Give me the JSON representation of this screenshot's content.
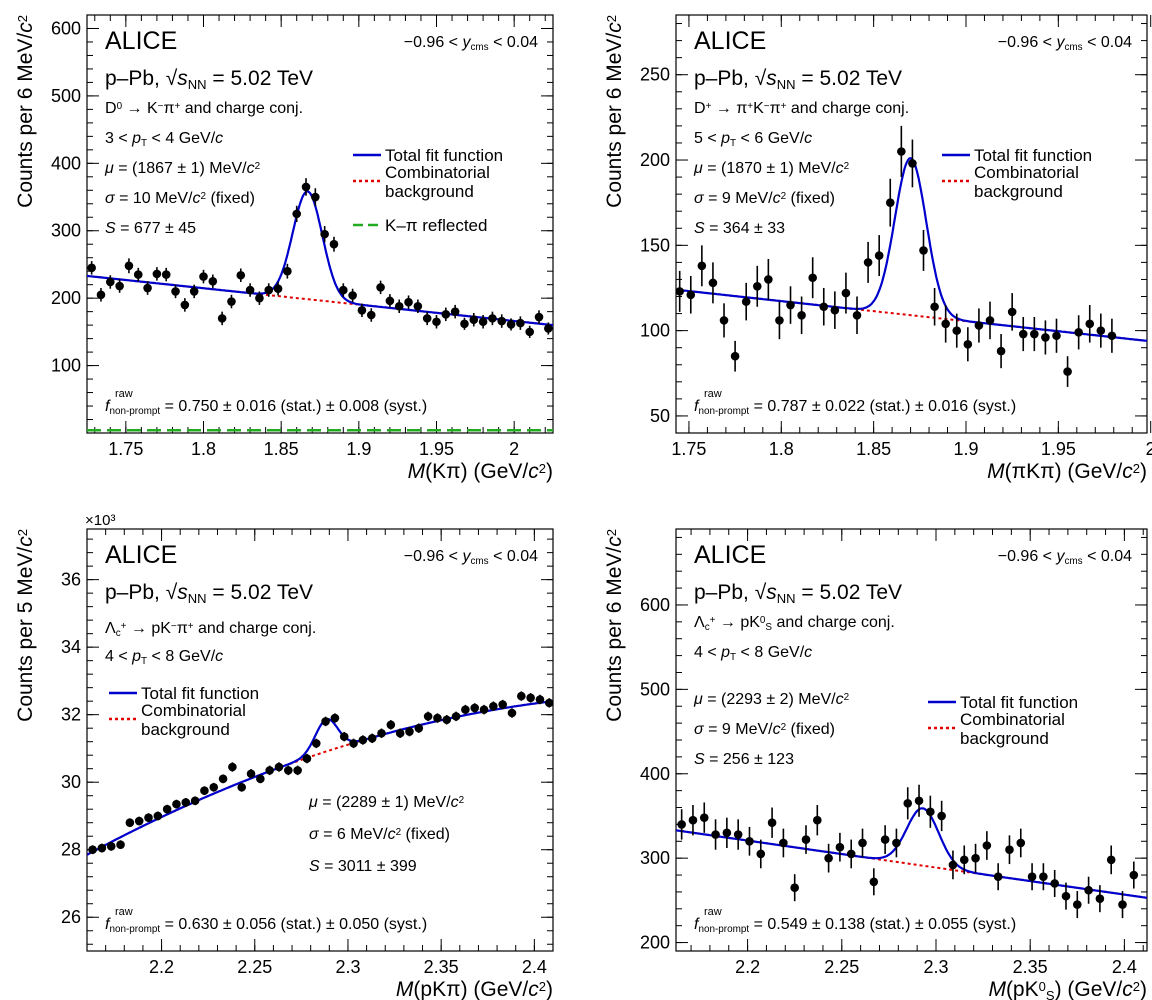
{
  "chart_data": [
    {
      "type": "scatter",
      "experiment": "ALICE",
      "rapidity": "−0.96 < y_cms < 0.04",
      "system": "p–Pb, √sNN = 5.02 TeV",
      "decay": "D⁰ → K⁻π⁺ and charge conj.",
      "pt_range": "3 < pT < 4 GeV/c",
      "fit_params": [
        "μ = (1867 ± 1) MeV/c²",
        "σ = 10 MeV/c² (fixed)",
        "S = 677 ± 45"
      ],
      "fraction": "f raw non-prompt = 0.750 ±  0.016 (stat.) ± 0.008 (syst.)",
      "xlabel": "M(Kπ) (GeV/c²)",
      "ylabel": "Counts per 6 MeV/c²",
      "y_multiplier": "",
      "xlim": [
        1.725,
        2.025
      ],
      "ylim": [
        0,
        620
      ],
      "x_ticks": [
        1.75,
        1.8,
        1.85,
        1.9,
        1.95,
        2.0
      ],
      "x_tick_labels": [
        "1.75",
        "1.8",
        "1.85",
        "1.9",
        "1.95",
        "2"
      ],
      "y_ticks": [
        100,
        200,
        300,
        400,
        500,
        600
      ],
      "y_tick_labels": [
        "100",
        "200",
        "300",
        "400",
        "500",
        "600"
      ],
      "grid": false,
      "legend_position": "right",
      "legend": [
        {
          "label": "Total fit function",
          "color": "#0000cc",
          "style": "solid"
        },
        {
          "label": "Combinatorial background",
          "color": "#e00000",
          "style": "dotted"
        },
        {
          "label": "K–π reflected",
          "color": "#22aa22",
          "style": "dashed"
        }
      ],
      "points": [
        [
          1.728,
          245,
          10
        ],
        [
          1.734,
          205,
          10
        ],
        [
          1.74,
          224,
          10
        ],
        [
          1.746,
          218,
          10
        ],
        [
          1.752,
          248,
          11
        ],
        [
          1.758,
          235,
          10
        ],
        [
          1.764,
          215,
          10
        ],
        [
          1.77,
          236,
          10
        ],
        [
          1.776,
          235,
          10
        ],
        [
          1.782,
          210,
          10
        ],
        [
          1.788,
          190,
          10
        ],
        [
          1.794,
          210,
          10
        ],
        [
          1.8,
          232,
          10
        ],
        [
          1.806,
          225,
          10
        ],
        [
          1.812,
          170,
          10
        ],
        [
          1.818,
          195,
          10
        ],
        [
          1.824,
          234,
          10
        ],
        [
          1.83,
          212,
          10
        ],
        [
          1.836,
          200,
          10
        ],
        [
          1.842,
          212,
          10
        ],
        [
          1.848,
          214,
          10
        ],
        [
          1.854,
          240,
          11
        ],
        [
          1.86,
          325,
          12
        ],
        [
          1.866,
          365,
          13
        ],
        [
          1.872,
          350,
          13
        ],
        [
          1.878,
          295,
          12
        ],
        [
          1.884,
          280,
          11
        ],
        [
          1.89,
          212,
          10
        ],
        [
          1.896,
          204,
          10
        ],
        [
          1.902,
          182,
          10
        ],
        [
          1.908,
          175,
          10
        ],
        [
          1.914,
          216,
          10
        ],
        [
          1.92,
          196,
          10
        ],
        [
          1.926,
          188,
          10
        ],
        [
          1.932,
          194,
          10
        ],
        [
          1.938,
          188,
          10
        ],
        [
          1.944,
          170,
          10
        ],
        [
          1.95,
          165,
          10
        ],
        [
          1.956,
          176,
          10
        ],
        [
          1.962,
          180,
          10
        ],
        [
          1.968,
          162,
          9
        ],
        [
          1.974,
          168,
          10
        ],
        [
          1.98,
          165,
          10
        ],
        [
          1.986,
          170,
          10
        ],
        [
          1.992,
          166,
          10
        ],
        [
          1.998,
          161,
          9
        ],
        [
          2.004,
          163,
          10
        ],
        [
          2.01,
          150,
          9
        ],
        [
          2.016,
          172,
          10
        ],
        [
          2.022,
          155,
          9
        ]
      ],
      "fit": {
        "bkg": [
          1.725,
          233,
          2.025,
          160
        ],
        "signals": [
          {
            "mean": 1.867,
            "sigma": 0.0095,
            "amp": 160
          }
        ],
        "reflection": 4
      }
    },
    {
      "type": "scatter",
      "experiment": "ALICE",
      "rapidity": "−0.96 < y_cms < 0.04",
      "system": "p–Pb, √sNN = 5.02 TeV",
      "decay": "D⁺ → π⁺K⁻π⁺ and charge conj.",
      "pt_range": "5 < pT < 6 GeV/c",
      "fit_params": [
        "μ = (1870 ± 1) MeV/c²",
        "σ = 9 MeV/c² (fixed)",
        "S = 364 ± 33"
      ],
      "fraction": "f raw non-prompt = 0.787 ±  0.022 (stat.) ± 0.016 (syst.)",
      "xlabel": "M(πKπ) (GeV/c²)",
      "ylabel": "Counts per 6 MeV/c²",
      "y_multiplier": "",
      "xlim": [
        1.743,
        1.998
      ],
      "ylim": [
        40,
        285
      ],
      "x_ticks": [
        1.75,
        1.8,
        1.85,
        1.9,
        1.95,
        2.0
      ],
      "x_tick_labels": [
        "1.75",
        "1.8",
        "1.85",
        "1.9",
        "1.95",
        "2"
      ],
      "y_ticks": [
        50,
        100,
        150,
        200,
        250
      ],
      "y_tick_labels": [
        "50",
        "100",
        "150",
        "200",
        "250"
      ],
      "grid": false,
      "legend_position": "right",
      "legend": [
        {
          "label": "Total fit function",
          "color": "#0000cc",
          "style": "solid"
        },
        {
          "label": "Combinatorial background",
          "color": "#e00000",
          "style": "dotted"
        }
      ],
      "points": [
        [
          1.745,
          123,
          12
        ],
        [
          1.751,
          121,
          11
        ],
        [
          1.757,
          138,
          12
        ],
        [
          1.763,
          128,
          12
        ],
        [
          1.769,
          106,
          10
        ],
        [
          1.775,
          85,
          9
        ],
        [
          1.781,
          117,
          11
        ],
        [
          1.787,
          126,
          12
        ],
        [
          1.793,
          130,
          12
        ],
        [
          1.799,
          106,
          11
        ],
        [
          1.805,
          115,
          11
        ],
        [
          1.811,
          109,
          11
        ],
        [
          1.817,
          131,
          12
        ],
        [
          1.823,
          114,
          11
        ],
        [
          1.829,
          112,
          11
        ],
        [
          1.835,
          122,
          12
        ],
        [
          1.841,
          109,
          11
        ],
        [
          1.847,
          140,
          12
        ],
        [
          1.853,
          144,
          12
        ],
        [
          1.859,
          175,
          14
        ],
        [
          1.865,
          205,
          15
        ],
        [
          1.871,
          198,
          14
        ],
        [
          1.877,
          147,
          12
        ],
        [
          1.883,
          114,
          11
        ],
        [
          1.889,
          104,
          11
        ],
        [
          1.895,
          100,
          10
        ],
        [
          1.901,
          92,
          10
        ],
        [
          1.907,
          103,
          10
        ],
        [
          1.913,
          106,
          11
        ],
        [
          1.919,
          88,
          10
        ],
        [
          1.925,
          111,
          11
        ],
        [
          1.931,
          98,
          10
        ],
        [
          1.937,
          98,
          10
        ],
        [
          1.943,
          96,
          10
        ],
        [
          1.949,
          97,
          10
        ],
        [
          1.955,
          76,
          9
        ],
        [
          1.961,
          99,
          10
        ],
        [
          1.967,
          104,
          11
        ],
        [
          1.973,
          100,
          10
        ],
        [
          1.979,
          97,
          10
        ]
      ],
      "fit": {
        "bkg": [
          1.743,
          124,
          1.998,
          94
        ],
        "signals": [
          {
            "mean": 1.87,
            "sigma": 0.0085,
            "amp": 92
          }
        ],
        "reflection": null
      }
    },
    {
      "type": "scatter",
      "experiment": "ALICE",
      "rapidity": "−0.96 < y_cms < 0.04",
      "system": "p–Pb, √sNN = 5.02 TeV",
      "decay": "Λc⁺ → pK⁻π⁺ and charge conj.",
      "pt_range": "4 < pT < 8 GeV/c",
      "fit_params": [
        "μ = (2289 ± 1) MeV/c²",
        "σ = 6 MeV/c² (fixed)",
        "S = 3011 ± 399"
      ],
      "fraction": "f raw non-prompt = 0.630 ± 0.056 (stat.) ± 0.050 (syst.)",
      "xlabel": "M(pKπ) (GeV/c²)",
      "ylabel": "Counts per 5 MeV/c²",
      "y_multiplier": "×10³",
      "xlim": [
        2.16,
        2.41
      ],
      "ylim": [
        25,
        37.5
      ],
      "x_ticks": [
        2.2,
        2.25,
        2.3,
        2.35,
        2.4
      ],
      "x_tick_labels": [
        "2.2",
        "2.25",
        "2.3",
        "2.35",
        "2.4"
      ],
      "y_ticks": [
        26,
        28,
        30,
        32,
        34,
        36
      ],
      "y_tick_labels": [
        "26",
        "28",
        "30",
        "32",
        "34",
        "36"
      ],
      "grid": false,
      "legend_position": "left",
      "legend": [
        {
          "label": "Total fit function",
          "color": "#0000cc",
          "style": "solid"
        },
        {
          "label": "Combinatorial background",
          "color": "#e00000",
          "style": "dotted"
        }
      ],
      "points": [
        [
          2.163,
          28.0,
          0.13
        ],
        [
          2.168,
          28.05,
          0.13
        ],
        [
          2.173,
          28.1,
          0.13
        ],
        [
          2.178,
          28.15,
          0.13
        ],
        [
          2.183,
          28.8,
          0.13
        ],
        [
          2.188,
          28.85,
          0.13
        ],
        [
          2.193,
          28.95,
          0.13
        ],
        [
          2.198,
          29.0,
          0.13
        ],
        [
          2.203,
          29.2,
          0.13
        ],
        [
          2.208,
          29.35,
          0.13
        ],
        [
          2.213,
          29.4,
          0.13
        ],
        [
          2.218,
          29.45,
          0.13
        ],
        [
          2.223,
          29.75,
          0.13
        ],
        [
          2.228,
          29.85,
          0.13
        ],
        [
          2.233,
          30.1,
          0.13
        ],
        [
          2.238,
          30.45,
          0.14
        ],
        [
          2.243,
          29.85,
          0.13
        ],
        [
          2.248,
          30.25,
          0.14
        ],
        [
          2.253,
          30.1,
          0.13
        ],
        [
          2.258,
          30.35,
          0.14
        ],
        [
          2.263,
          30.45,
          0.14
        ],
        [
          2.268,
          30.35,
          0.14
        ],
        [
          2.273,
          30.35,
          0.14
        ],
        [
          2.278,
          30.7,
          0.14
        ],
        [
          2.283,
          31.15,
          0.14
        ],
        [
          2.288,
          31.8,
          0.14
        ],
        [
          2.293,
          31.9,
          0.14
        ],
        [
          2.298,
          31.35,
          0.14
        ],
        [
          2.303,
          31.15,
          0.14
        ],
        [
          2.308,
          31.25,
          0.14
        ],
        [
          2.313,
          31.3,
          0.14
        ],
        [
          2.318,
          31.45,
          0.14
        ],
        [
          2.323,
          31.7,
          0.14
        ],
        [
          2.328,
          31.45,
          0.14
        ],
        [
          2.333,
          31.5,
          0.14
        ],
        [
          2.338,
          31.6,
          0.14
        ],
        [
          2.343,
          31.95,
          0.14
        ],
        [
          2.348,
          31.9,
          0.14
        ],
        [
          2.353,
          31.85,
          0.14
        ],
        [
          2.358,
          31.95,
          0.14
        ],
        [
          2.363,
          32.15,
          0.14
        ],
        [
          2.368,
          32.2,
          0.14
        ],
        [
          2.373,
          32.15,
          0.14
        ],
        [
          2.378,
          32.25,
          0.14
        ],
        [
          2.383,
          32.3,
          0.14
        ],
        [
          2.388,
          32.05,
          0.14
        ],
        [
          2.393,
          32.55,
          0.14
        ],
        [
          2.398,
          32.5,
          0.14
        ],
        [
          2.403,
          32.45,
          0.14
        ],
        [
          2.408,
          32.35,
          0.14
        ]
      ],
      "fit": {
        "bkg_quad": [
          2.16,
          27.85,
          2.285,
          30.85,
          2.41,
          32.4
        ],
        "signals": [
          {
            "mean": 2.2885,
            "sigma": 0.006,
            "amp": 0.95
          }
        ],
        "reflection": null
      }
    },
    {
      "type": "scatter",
      "experiment": "ALICE",
      "rapidity": "−0.96 < y_cms < 0.04",
      "system": "p–Pb, √sNN = 5.02 TeV",
      "decay": "Λc⁺ → pK⁰S and charge conj.",
      "pt_range": "4 < pT < 8 GeV/c",
      "fit_params": [
        "μ = (2293 ± 2) MeV/c²",
        "σ = 9 MeV/c² (fixed)",
        "S = 256 ± 123"
      ],
      "fraction": "f raw non-prompt = 0.549 ± 0.138 (stat.) ± 0.055 (syst.)",
      "xlabel": "M(pK⁰S) (GeV/c²)",
      "ylabel": "Counts per 6 MeV/c²",
      "y_multiplier": "",
      "xlim": [
        2.162,
        2.412
      ],
      "ylim": [
        190,
        690
      ],
      "x_ticks": [
        2.2,
        2.25,
        2.3,
        2.35,
        2.4
      ],
      "x_tick_labels": [
        "2.2",
        "2.25",
        "2.3",
        "2.35",
        "2.4"
      ],
      "y_ticks": [
        200,
        300,
        400,
        500,
        600
      ],
      "y_tick_labels": [
        "200",
        "300",
        "400",
        "500",
        "600"
      ],
      "grid": false,
      "legend_position": "right",
      "legend": [
        {
          "label": "Total fit function",
          "color": "#0000cc",
          "style": "solid"
        },
        {
          "label": "Combinatorial background",
          "color": "#e00000",
          "style": "dotted"
        }
      ],
      "points": [
        [
          2.165,
          340,
          18
        ],
        [
          2.171,
          345,
          18
        ],
        [
          2.177,
          348,
          18
        ],
        [
          2.183,
          328,
          18
        ],
        [
          2.189,
          330,
          18
        ],
        [
          2.195,
          328,
          18
        ],
        [
          2.201,
          320,
          17
        ],
        [
          2.207,
          305,
          17
        ],
        [
          2.213,
          342,
          18
        ],
        [
          2.219,
          318,
          17
        ],
        [
          2.225,
          265,
          16
        ],
        [
          2.231,
          322,
          17
        ],
        [
          2.237,
          345,
          18
        ],
        [
          2.243,
          300,
          17
        ],
        [
          2.249,
          313,
          17
        ],
        [
          2.255,
          305,
          17
        ],
        [
          2.261,
          318,
          17
        ],
        [
          2.267,
          272,
          16
        ],
        [
          2.273,
          322,
          17
        ],
        [
          2.279,
          318,
          17
        ],
        [
          2.285,
          365,
          19
        ],
        [
          2.291,
          368,
          19
        ],
        [
          2.297,
          355,
          19
        ],
        [
          2.303,
          350,
          18
        ],
        [
          2.309,
          292,
          17
        ],
        [
          2.315,
          298,
          17
        ],
        [
          2.321,
          300,
          17
        ],
        [
          2.327,
          315,
          17
        ],
        [
          2.333,
          278,
          16
        ],
        [
          2.339,
          310,
          17
        ],
        [
          2.345,
          318,
          17
        ],
        [
          2.351,
          278,
          16
        ],
        [
          2.357,
          278,
          16
        ],
        [
          2.363,
          270,
          16
        ],
        [
          2.369,
          255,
          16
        ],
        [
          2.375,
          245,
          16
        ],
        [
          2.381,
          262,
          16
        ],
        [
          2.387,
          252,
          16
        ],
        [
          2.393,
          298,
          17
        ],
        [
          2.399,
          245,
          16
        ],
        [
          2.405,
          280,
          16
        ]
      ],
      "fit": {
        "bkg": [
          2.162,
          333,
          2.412,
          253
        ],
        "signals": [
          {
            "mean": 2.293,
            "sigma": 0.0085,
            "amp": 68
          }
        ],
        "reflection": null
      }
    }
  ]
}
